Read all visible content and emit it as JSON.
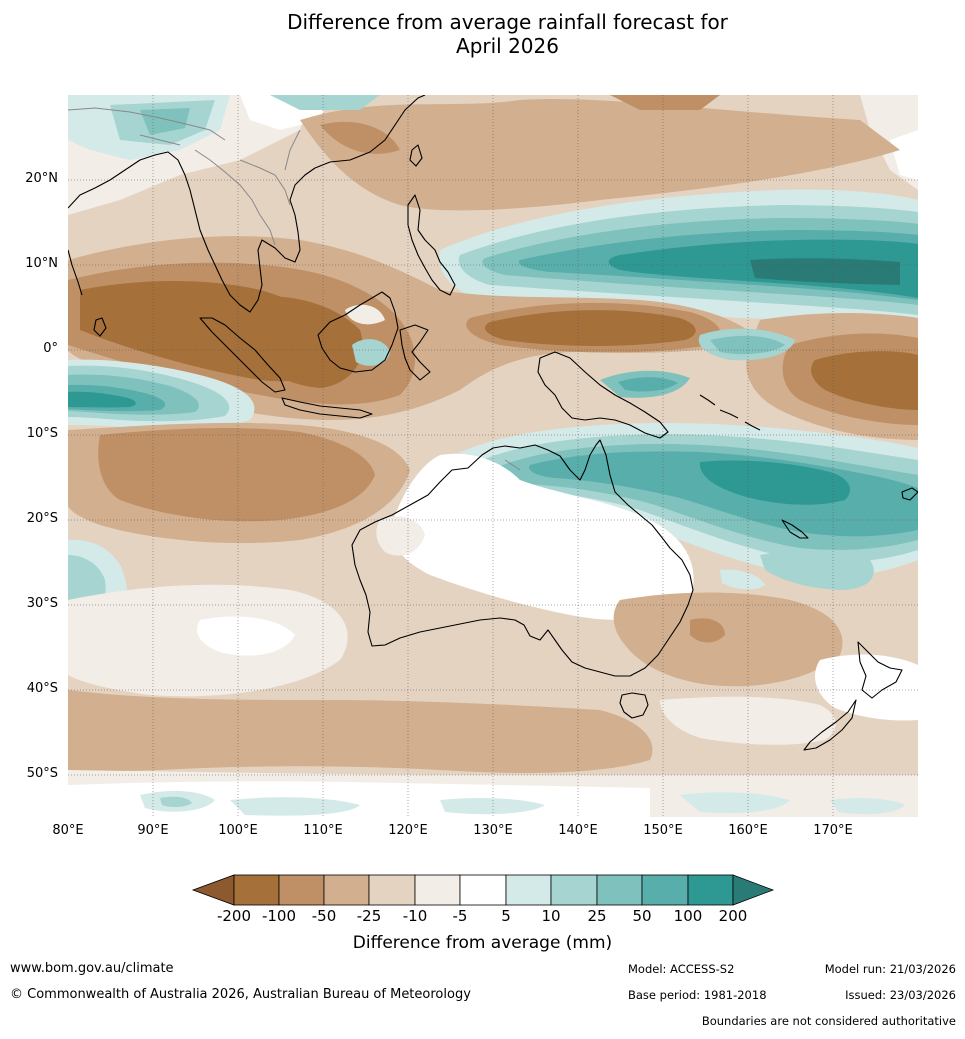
{
  "title": {
    "line1": "Difference from average rainfall forecast for",
    "line2": "April 2026"
  },
  "map": {
    "latitude_labels": [
      "20°N",
      "10°N",
      "0°",
      "10°S",
      "20°S",
      "30°S",
      "40°S",
      "50°S"
    ],
    "longitude_labels": [
      "80°E",
      "90°E",
      "100°E",
      "110°E",
      "120°E",
      "130°E",
      "140°E",
      "150°E",
      "160°E",
      "170°E"
    ]
  },
  "colorbar": {
    "title": "Difference from average (mm)",
    "tick_labels": [
      "-200",
      "-100",
      "-50",
      "-25",
      "-10",
      "-5",
      "5",
      "10",
      "25",
      "50",
      "100",
      "200"
    ],
    "colors": [
      "#a5703a",
      "#bf9066",
      "#d2b08f",
      "#e5d3c2",
      "#f2ede7",
      "#ffffff",
      "#d4eae8",
      "#a6d4d1",
      "#7fc1bd",
      "#58aeaa",
      "#2e9893"
    ],
    "under_color": "#8c5a2e",
    "over_color": "#2a7a76"
  },
  "footer": {
    "website": "www.bom.gov.au/climate",
    "copyright": "© Commonwealth of Australia 2026, Australian Bureau of Meteorology",
    "model": "Model: ACCESS-S2",
    "model_run": "Model run: 21/03/2026",
    "base_period": "Base period: 1981-2018",
    "issued": "Issued: 23/03/2026",
    "disclaimer": "Boundaries are not considered authoritative"
  }
}
